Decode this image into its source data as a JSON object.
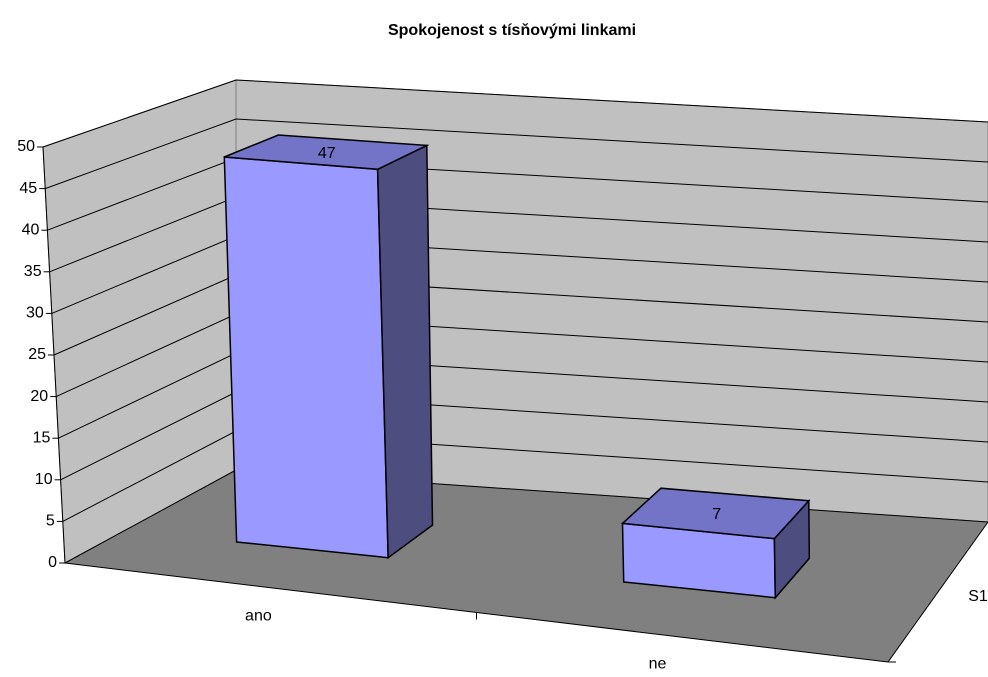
{
  "chart_data": {
    "type": "bar3d",
    "title": "Spokojenost s tísňovými linkami",
    "categories": [
      "ano",
      "ne"
    ],
    "series": [
      {
        "name": "S1",
        "color": "#9999ff",
        "values": [
          47,
          7
        ]
      }
    ],
    "ylim": [
      0,
      50
    ],
    "yticks": [
      0,
      5,
      10,
      15,
      20,
      25,
      30,
      35,
      40,
      45,
      50
    ],
    "grid": true
  }
}
